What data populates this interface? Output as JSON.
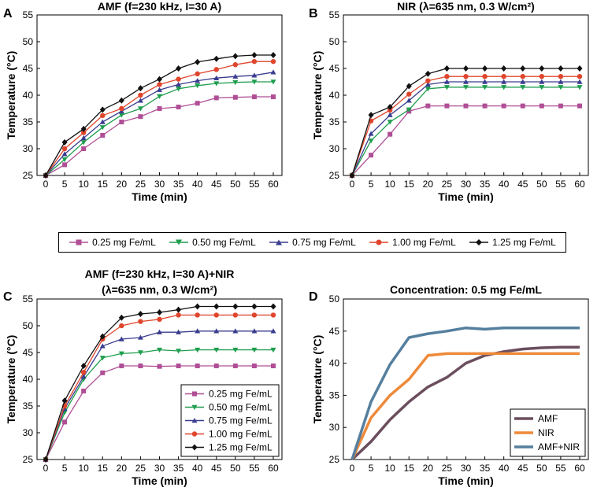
{
  "colors": {
    "c025": "#b04e96",
    "c050": "#1e9e4e",
    "c075": "#3a3d8f",
    "c100": "#e0452c",
    "c125": "#111111",
    "AMF": "#6b4e5e",
    "NIR": "#ee8a3a",
    "AMFNIR": "#557f9e"
  },
  "shared_legend": [
    {
      "label": "0.25 mg Fe/mL",
      "color_key": "c025",
      "marker": "square"
    },
    {
      "label": "0.50 mg Fe/mL",
      "color_key": "c050",
      "marker": "triangle-down"
    },
    {
      "label": "0.75 mg Fe/mL",
      "color_key": "c075",
      "marker": "triangle-up"
    },
    {
      "label": "1.00 mg Fe/mL",
      "color_key": "c100",
      "marker": "circle"
    },
    {
      "label": "1.25 mg Fe/mL",
      "color_key": "c125",
      "marker": "diamond"
    }
  ],
  "chart_data": [
    {
      "panel_letter": "A",
      "type": "line",
      "title": "AMF (f=230 kHz, I=30 A)",
      "xlabel": "Time (min)",
      "ylabel": "Temperature (°C)",
      "x": [
        0,
        5,
        10,
        15,
        20,
        25,
        30,
        35,
        40,
        45,
        50,
        55,
        60
      ],
      "xticks": [
        "0",
        "5",
        "10",
        "15",
        "20",
        "25",
        "30",
        "35",
        "40",
        "45",
        "50",
        "55",
        "60"
      ],
      "yticks": [
        "25",
        "30",
        "35",
        "40",
        "45",
        "50",
        "55"
      ],
      "xlim": [
        0,
        60
      ],
      "ylim": [
        25,
        55
      ],
      "legend": "none",
      "series": [
        {
          "name": "0.25 mg Fe/mL",
          "color_key": "c025",
          "marker": "square",
          "values": [
            25,
            27,
            30,
            32.5,
            35,
            36,
            37.5,
            37.8,
            38.5,
            39.5,
            39.6,
            39.7,
            39.7
          ]
        },
        {
          "name": "0.50 mg Fe/mL",
          "color_key": "c050",
          "marker": "triangle-down",
          "values": [
            25,
            28,
            31.2,
            34,
            36.3,
            37.5,
            39.8,
            41.2,
            41.8,
            42.2,
            42.4,
            42.5,
            42.5
          ]
        },
        {
          "name": "0.75 mg Fe/mL",
          "color_key": "c075",
          "marker": "triangle-up",
          "values": [
            25,
            29,
            32,
            35,
            37,
            39,
            41,
            42,
            42.7,
            43.2,
            43.5,
            43.7,
            44.3
          ]
        },
        {
          "name": "1.00 mg Fe/mL",
          "color_key": "c100",
          "marker": "circle",
          "values": [
            25,
            30,
            33,
            36.2,
            37.5,
            40,
            42,
            43,
            44,
            44.8,
            45.7,
            46.3,
            46.3
          ]
        },
        {
          "name": "1.25 mg Fe/mL",
          "color_key": "c125",
          "marker": "diamond",
          "values": [
            25,
            31.2,
            33.7,
            37.3,
            39,
            41.3,
            43,
            45,
            46.2,
            46.8,
            47.3,
            47.5,
            47.5
          ]
        }
      ]
    },
    {
      "panel_letter": "B",
      "type": "line",
      "title": "NIR (λ=635 nm, 0.3 W/cm²)",
      "xlabel": "Time (min)",
      "ylabel": "Temperature (°C)",
      "x": [
        0,
        5,
        10,
        15,
        20,
        25,
        30,
        35,
        40,
        45,
        50,
        55,
        60
      ],
      "xticks": [
        "0",
        "5",
        "10",
        "15",
        "20",
        "25",
        "30",
        "35",
        "40",
        "45",
        "50",
        "55",
        "60"
      ],
      "yticks": [
        "25",
        "30",
        "35",
        "40",
        "45",
        "50",
        "55"
      ],
      "xlim": [
        0,
        60
      ],
      "ylim": [
        25,
        55
      ],
      "legend": "none",
      "series": [
        {
          "name": "0.25 mg Fe/mL",
          "color_key": "c025",
          "marker": "square",
          "values": [
            25,
            28.8,
            32.7,
            37,
            38,
            38,
            38,
            38,
            38,
            38,
            38,
            38,
            38
          ]
        },
        {
          "name": "0.50 mg Fe/mL",
          "color_key": "c050",
          "marker": "triangle-down",
          "values": [
            25,
            31.5,
            35,
            37.3,
            41.2,
            41.5,
            41.5,
            41.5,
            41.5,
            41.5,
            41.5,
            41.5,
            41.5
          ]
        },
        {
          "name": "0.75 mg Fe/mL",
          "color_key": "c075",
          "marker": "triangle-up",
          "values": [
            25,
            32.8,
            36.3,
            39,
            42,
            42.5,
            42.5,
            42.5,
            42.5,
            42.5,
            42.5,
            42.5,
            42.5
          ]
        },
        {
          "name": "1.00 mg Fe/mL",
          "color_key": "c100",
          "marker": "circle",
          "values": [
            25,
            35.2,
            37.2,
            40.2,
            42.7,
            43.5,
            43.5,
            43.5,
            43.5,
            43.5,
            43.5,
            43.5,
            43.5
          ]
        },
        {
          "name": "1.25 mg Fe/mL",
          "color_key": "c125",
          "marker": "diamond",
          "values": [
            25,
            36.3,
            37.8,
            41.7,
            44,
            45,
            45,
            45,
            45,
            45,
            45,
            45,
            45
          ]
        }
      ]
    },
    {
      "panel_letter": "C",
      "type": "line",
      "title": "AMF (f=230 kHz, I=30 A)+NIR",
      "subtitle": "(λ=635 nm, 0.3 W/cm²)",
      "xlabel": "Time (min)",
      "ylabel": "Temperature (°C)",
      "x": [
        0,
        5,
        10,
        15,
        20,
        25,
        30,
        35,
        40,
        45,
        50,
        55,
        60
      ],
      "xticks": [
        "0",
        "5",
        "10",
        "15",
        "20",
        "25",
        "30",
        "35",
        "40",
        "45",
        "50",
        "55",
        "60"
      ],
      "yticks": [
        "25",
        "30",
        "35",
        "40",
        "45",
        "50",
        "55"
      ],
      "xlim": [
        0,
        60
      ],
      "ylim": [
        25,
        55
      ],
      "legend": "bottom-right",
      "series": [
        {
          "name": "0.25 mg Fe/mL",
          "color_key": "c025",
          "marker": "square",
          "values": [
            25,
            32,
            37.8,
            41.2,
            42.5,
            42.5,
            42.4,
            42.5,
            42.5,
            42.5,
            42.5,
            42.5,
            42.5
          ]
        },
        {
          "name": "0.50 mg Fe/mL",
          "color_key": "c050",
          "marker": "triangle-down",
          "values": [
            25,
            33.8,
            40,
            44,
            44.8,
            45,
            45.5,
            45.3,
            45.5,
            45.5,
            45.5,
            45.5,
            45.5
          ]
        },
        {
          "name": "0.75 mg Fe/mL",
          "color_key": "c075",
          "marker": "triangle-up",
          "values": [
            25,
            34.5,
            40.5,
            46.2,
            47.5,
            47.8,
            48.8,
            48.8,
            49,
            49,
            49,
            49,
            49
          ]
        },
        {
          "name": "1.00 mg Fe/mL",
          "color_key": "c100",
          "marker": "circle",
          "values": [
            25,
            35,
            41.3,
            47.5,
            50,
            50.8,
            51.2,
            52,
            52,
            52,
            52,
            52,
            52
          ]
        },
        {
          "name": "1.25 mg Fe/mL",
          "color_key": "c125",
          "marker": "diamond",
          "values": [
            25,
            36,
            42.5,
            48,
            51.5,
            52.2,
            52.5,
            53,
            53.6,
            53.6,
            53.6,
            53.6,
            53.6
          ]
        }
      ]
    },
    {
      "panel_letter": "D",
      "type": "line",
      "title": "Concentration: 0.5 mg Fe/mL",
      "xlabel": "Time (min)",
      "ylabel": "Temperature (°C)",
      "x": [
        0,
        5,
        10,
        15,
        20,
        25,
        30,
        35,
        40,
        45,
        50,
        55,
        60
      ],
      "xticks": [
        "0",
        "5",
        "10",
        "15",
        "20",
        "25",
        "30",
        "35",
        "40",
        "45",
        "50",
        "55",
        "60"
      ],
      "yticks": [
        "25",
        "30",
        "35",
        "40",
        "45",
        "50"
      ],
      "xlim": [
        0,
        60
      ],
      "ylim": [
        25,
        50
      ],
      "legend": "bottom-right",
      "series": [
        {
          "name": "AMF",
          "color_key": "AMF",
          "marker": "none",
          "values": [
            25,
            27.8,
            31.2,
            34,
            36.3,
            37.8,
            40,
            41.2,
            41.8,
            42.2,
            42.4,
            42.5,
            42.5
          ]
        },
        {
          "name": "NIR",
          "color_key": "NIR",
          "marker": "none",
          "values": [
            25,
            31.5,
            35,
            37.5,
            41.2,
            41.5,
            41.5,
            41.5,
            41.5,
            41.5,
            41.5,
            41.5,
            41.5
          ]
        },
        {
          "name": "AMF+NIR",
          "color_key": "AMFNIR",
          "marker": "none",
          "values": [
            25,
            34,
            39.8,
            44,
            44.6,
            45,
            45.5,
            45.3,
            45.5,
            45.5,
            45.5,
            45.5,
            45.5
          ]
        }
      ]
    }
  ]
}
